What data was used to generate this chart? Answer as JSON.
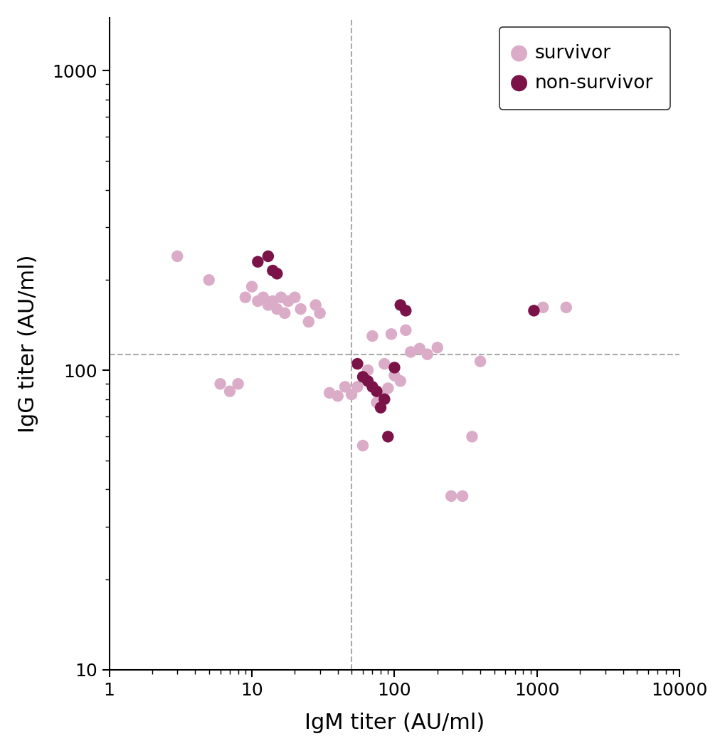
{
  "survivor_igm": [
    3,
    5,
    6,
    7,
    8,
    9,
    10,
    11,
    12,
    13,
    14,
    15,
    16,
    17,
    18,
    20,
    22,
    25,
    28,
    30,
    35,
    40,
    45,
    50,
    55,
    60,
    65,
    70,
    75,
    80,
    85,
    90,
    95,
    100,
    110,
    120,
    130,
    150,
    170,
    200,
    250,
    300,
    350,
    400,
    1100,
    1600
  ],
  "survivor_igg": [
    240,
    200,
    90,
    85,
    90,
    175,
    190,
    170,
    175,
    165,
    170,
    160,
    175,
    155,
    170,
    175,
    160,
    145,
    165,
    155,
    84,
    82,
    88,
    83,
    88,
    56,
    100,
    130,
    78,
    82,
    105,
    87,
    132,
    96,
    92,
    136,
    115,
    118,
    113,
    119,
    38,
    38,
    60,
    107,
    162,
    162
  ],
  "nonsurvivor_igm": [
    11,
    13,
    14,
    15,
    55,
    60,
    65,
    70,
    75,
    80,
    85,
    90,
    100,
    110,
    120,
    950
  ],
  "nonsurvivor_igg": [
    230,
    240,
    215,
    210,
    105,
    95,
    92,
    88,
    85,
    75,
    80,
    60,
    102,
    165,
    158,
    158
  ],
  "igm_cutoff": 50,
  "igg_cutoff": 113,
  "survivor_color": "#DBACC8",
  "nonsurvivor_color": "#7B1248",
  "xlabel": "IgM titer (AU/ml)",
  "ylabel": "IgG titer (AU/ml)",
  "xlim": [
    1,
    10000
  ],
  "ylim": [
    10,
    1500
  ],
  "x_ticks": [
    1,
    10,
    100,
    1000,
    10000
  ],
  "y_ticks": [
    10,
    100,
    1000
  ],
  "legend_survivor": "survivor",
  "legend_nonsurvivor": "non-survivor",
  "marker_size": 140,
  "dashed_color": "#AAAAAA",
  "background_color": "#FFFFFF"
}
